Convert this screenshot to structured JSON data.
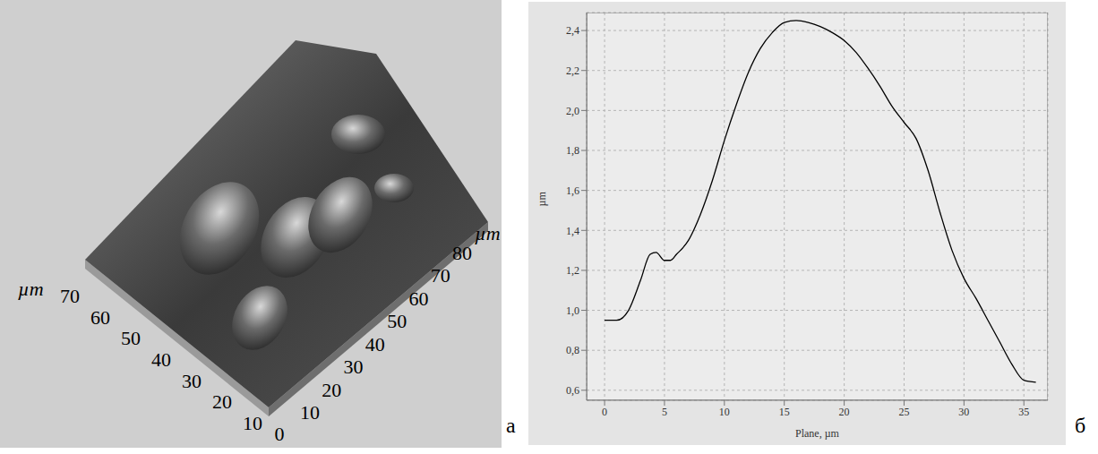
{
  "image_panel": {
    "label": "а",
    "type": "3d_surface",
    "axis_title": "µm",
    "front_axis_ticks": [
      70,
      60,
      50,
      40,
      30,
      20,
      10
    ],
    "side_axis_ticks": [
      10,
      20,
      30,
      40,
      50,
      60,
      70,
      80
    ],
    "origin_tick": 0
  },
  "chart_data": {
    "type": "line",
    "label": "б",
    "x_label": "Plane, µm",
    "y_label": "µm",
    "x": [
      0,
      1,
      2,
      3,
      3.8,
      4.3,
      5,
      5.5,
      6,
      7,
      8,
      9,
      10,
      11,
      12,
      13,
      14,
      15,
      16,
      17,
      18,
      19,
      20,
      21,
      22,
      23,
      24,
      25,
      26,
      27,
      28,
      29,
      30,
      31,
      32,
      33,
      34,
      35,
      36
    ],
    "values": [
      0.95,
      0.95,
      1.0,
      1.15,
      1.28,
      1.29,
      1.25,
      1.25,
      1.28,
      1.35,
      1.48,
      1.65,
      1.85,
      2.03,
      2.19,
      2.31,
      2.39,
      2.44,
      2.45,
      2.44,
      2.42,
      2.39,
      2.35,
      2.29,
      2.21,
      2.12,
      2.02,
      1.94,
      1.86,
      1.7,
      1.49,
      1.3,
      1.16,
      1.06,
      0.95,
      0.84,
      0.73,
      0.65,
      0.64
    ],
    "color": "#000000",
    "xlim": [
      -1.5,
      37
    ],
    "ylim": [
      0.55,
      2.49
    ],
    "xticks": [
      0,
      5,
      10,
      15,
      20,
      25,
      30,
      35
    ],
    "yticks": [
      {
        "value": 0.6,
        "label": "0,6"
      },
      {
        "value": 0.8,
        "label": "0,8"
      },
      {
        "value": 1.0,
        "label": "1,0"
      },
      {
        "value": 1.2,
        "label": "1,2"
      },
      {
        "value": 1.4,
        "label": "1,4"
      },
      {
        "value": 1.6,
        "label": "1,6"
      },
      {
        "value": 1.8,
        "label": "1,8"
      },
      {
        "value": 2.0,
        "label": "2,0"
      },
      {
        "value": 2.2,
        "label": "2,2"
      },
      {
        "value": 2.4,
        "label": "2,4"
      }
    ],
    "grid": true
  }
}
